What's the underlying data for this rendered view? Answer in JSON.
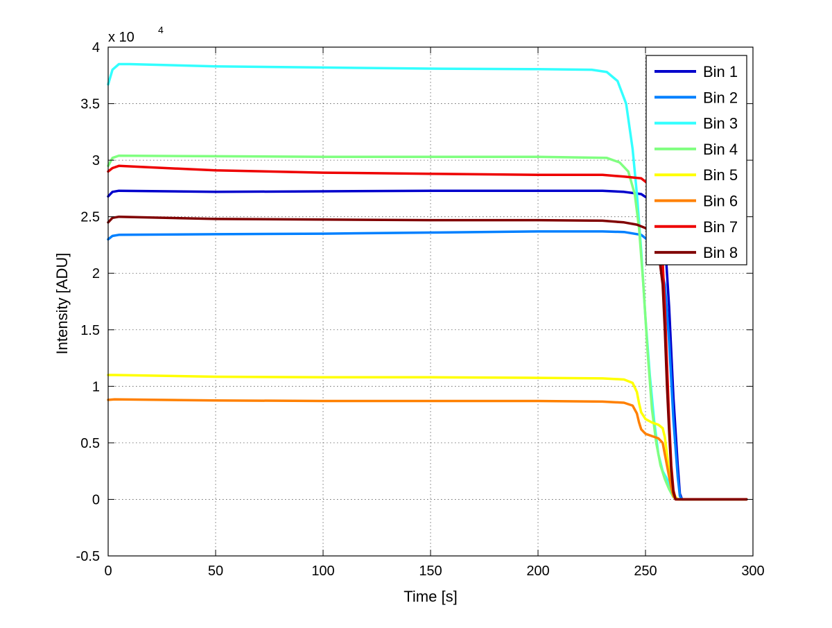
{
  "chart_data": {
    "type": "line",
    "title": "",
    "xlabel": "Time [s]",
    "ylabel": "Intensity [ADU]",
    "y_exponent": {
      "base": "x 10",
      "power": "4"
    },
    "xlim": [
      0,
      300
    ],
    "ylim": [
      -5000,
      40000
    ],
    "xticks": [
      0,
      50,
      100,
      150,
      200,
      250,
      300
    ],
    "xtick_labels": [
      "0",
      "50",
      "100",
      "150",
      "200",
      "250",
      "300"
    ],
    "yticks": [
      -5000,
      0,
      5000,
      10000,
      15000,
      20000,
      25000,
      30000,
      35000,
      40000
    ],
    "ytick_labels": [
      "-0.5",
      "0",
      "0.5",
      "1",
      "1.5",
      "2",
      "2.5",
      "3",
      "3.5",
      "4"
    ],
    "grid": true,
    "legend_position": "top-right",
    "series": [
      {
        "name": "Bin 1",
        "color": "#0000cc",
        "points": [
          [
            0,
            26800
          ],
          [
            2,
            27200
          ],
          [
            5,
            27300
          ],
          [
            50,
            27200
          ],
          [
            100,
            27250
          ],
          [
            150,
            27300
          ],
          [
            200,
            27300
          ],
          [
            230,
            27300
          ],
          [
            240,
            27200
          ],
          [
            248,
            27000
          ],
          [
            252,
            26500
          ],
          [
            256,
            25500
          ],
          [
            259,
            23000
          ],
          [
            261,
            17000
          ],
          [
            263,
            9000
          ],
          [
            265,
            3000
          ],
          [
            266,
            500
          ],
          [
            267,
            0
          ],
          [
            297,
            0
          ]
        ]
      },
      {
        "name": "Bin 2",
        "color": "#0080ff",
        "points": [
          [
            0,
            23000
          ],
          [
            2,
            23300
          ],
          [
            5,
            23400
          ],
          [
            50,
            23450
          ],
          [
            100,
            23500
          ],
          [
            150,
            23600
          ],
          [
            200,
            23700
          ],
          [
            230,
            23700
          ],
          [
            240,
            23650
          ],
          [
            248,
            23400
          ],
          [
            252,
            22800
          ],
          [
            256,
            21500
          ],
          [
            259,
            19000
          ],
          [
            261,
            14000
          ],
          [
            263,
            7000
          ],
          [
            265,
            2000
          ],
          [
            266,
            300
          ],
          [
            267,
            0
          ],
          [
            297,
            0
          ]
        ]
      },
      {
        "name": "Bin 3",
        "color": "#33ffff",
        "points": [
          [
            0,
            36700
          ],
          [
            2,
            38000
          ],
          [
            5,
            38500
          ],
          [
            10,
            38500
          ],
          [
            50,
            38300
          ],
          [
            100,
            38200
          ],
          [
            150,
            38100
          ],
          [
            200,
            38050
          ],
          [
            225,
            38000
          ],
          [
            232,
            37800
          ],
          [
            237,
            37000
          ],
          [
            241,
            35000
          ],
          [
            244,
            31000
          ],
          [
            246,
            27000
          ],
          [
            248,
            22000
          ],
          [
            250,
            16000
          ],
          [
            252,
            11000
          ],
          [
            254,
            7000
          ],
          [
            256,
            4000
          ],
          [
            258,
            2500
          ],
          [
            260,
            1800
          ],
          [
            262,
            800
          ],
          [
            264,
            100
          ],
          [
            266,
            0
          ],
          [
            297,
            0
          ]
        ]
      },
      {
        "name": "Bin 4",
        "color": "#80ff80",
        "points": [
          [
            0,
            29500
          ],
          [
            2,
            30200
          ],
          [
            5,
            30400
          ],
          [
            50,
            30350
          ],
          [
            100,
            30300
          ],
          [
            150,
            30300
          ],
          [
            200,
            30300
          ],
          [
            232,
            30200
          ],
          [
            238,
            29800
          ],
          [
            242,
            29000
          ],
          [
            245,
            27000
          ],
          [
            247,
            24000
          ],
          [
            249,
            19000
          ],
          [
            251,
            13000
          ],
          [
            253,
            8000
          ],
          [
            255,
            5000
          ],
          [
            257,
            3000
          ],
          [
            259,
            1800
          ],
          [
            261,
            900
          ],
          [
            263,
            200
          ],
          [
            265,
            0
          ],
          [
            297,
            0
          ]
        ]
      },
      {
        "name": "Bin 5",
        "color": "#ffff00",
        "points": [
          [
            0,
            11000
          ],
          [
            3,
            11000
          ],
          [
            50,
            10850
          ],
          [
            100,
            10800
          ],
          [
            150,
            10800
          ],
          [
            200,
            10750
          ],
          [
            230,
            10700
          ],
          [
            240,
            10600
          ],
          [
            244,
            10300
          ],
          [
            246,
            9500
          ],
          [
            247,
            8500
          ],
          [
            248,
            7700
          ],
          [
            250,
            7100
          ],
          [
            253,
            6800
          ],
          [
            256,
            6600
          ],
          [
            258,
            6300
          ],
          [
            259,
            5500
          ],
          [
            260,
            4000
          ],
          [
            261,
            2500
          ],
          [
            262,
            1500
          ],
          [
            263,
            700
          ],
          [
            264,
            200
          ],
          [
            265,
            0
          ],
          [
            297,
            0
          ]
        ]
      },
      {
        "name": "Bin 6",
        "color": "#ff8000",
        "points": [
          [
            0,
            8800
          ],
          [
            3,
            8850
          ],
          [
            50,
            8750
          ],
          [
            100,
            8700
          ],
          [
            150,
            8700
          ],
          [
            200,
            8700
          ],
          [
            230,
            8650
          ],
          [
            240,
            8550
          ],
          [
            244,
            8300
          ],
          [
            246,
            7600
          ],
          [
            247,
            6800
          ],
          [
            248,
            6200
          ],
          [
            250,
            5800
          ],
          [
            253,
            5600
          ],
          [
            256,
            5400
          ],
          [
            258,
            5000
          ],
          [
            259,
            4000
          ],
          [
            260,
            3000
          ],
          [
            261,
            2000
          ],
          [
            262,
            1000
          ],
          [
            263,
            300
          ],
          [
            264,
            0
          ],
          [
            297,
            0
          ]
        ]
      },
      {
        "name": "Bin 7",
        "color": "#ee0000",
        "points": [
          [
            0,
            29000
          ],
          [
            2,
            29300
          ],
          [
            5,
            29500
          ],
          [
            50,
            29100
          ],
          [
            100,
            28900
          ],
          [
            150,
            28800
          ],
          [
            200,
            28700
          ],
          [
            230,
            28700
          ],
          [
            240,
            28550
          ],
          [
            248,
            28400
          ],
          [
            252,
            27800
          ],
          [
            255,
            26500
          ],
          [
            257,
            24000
          ],
          [
            258,
            21000
          ],
          [
            259,
            17000
          ],
          [
            260,
            12000
          ],
          [
            261,
            7000
          ],
          [
            262,
            3000
          ],
          [
            263,
            800
          ],
          [
            264,
            0
          ],
          [
            297,
            0
          ]
        ]
      },
      {
        "name": "Bin 8",
        "color": "#800000",
        "points": [
          [
            0,
            24500
          ],
          [
            2,
            24900
          ],
          [
            5,
            25000
          ],
          [
            50,
            24800
          ],
          [
            100,
            24750
          ],
          [
            150,
            24700
          ],
          [
            200,
            24700
          ],
          [
            230,
            24650
          ],
          [
            240,
            24500
          ],
          [
            246,
            24300
          ],
          [
            250,
            24000
          ],
          [
            253,
            23500
          ],
          [
            256,
            22000
          ],
          [
            258,
            19000
          ],
          [
            259,
            15000
          ],
          [
            260,
            10000
          ],
          [
            261,
            6000
          ],
          [
            262,
            2500
          ],
          [
            263,
            600
          ],
          [
            264,
            0
          ],
          [
            297,
            0
          ]
        ]
      }
    ]
  }
}
